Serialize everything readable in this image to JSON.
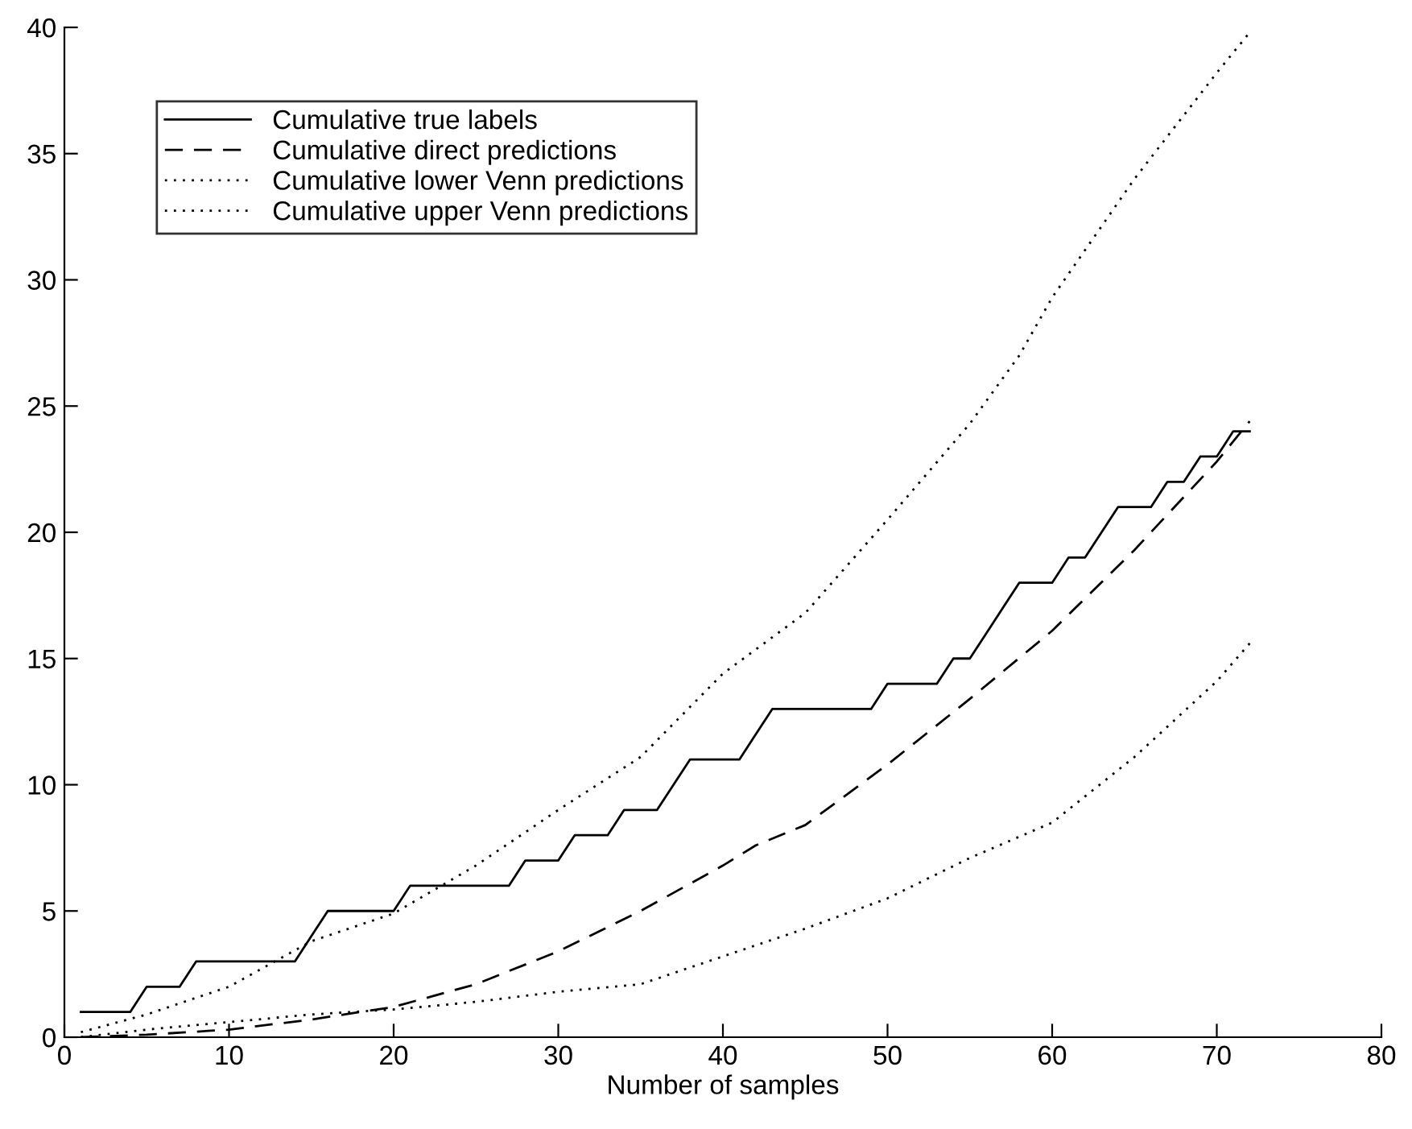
{
  "chart_data": {
    "type": "line",
    "xlabel": "Number of samples",
    "xlim": [
      0,
      80
    ],
    "ylim": [
      0,
      40
    ],
    "xticks": [
      0,
      10,
      20,
      30,
      40,
      50,
      60,
      70,
      80
    ],
    "yticks": [
      0,
      5,
      10,
      15,
      20,
      25,
      30,
      35,
      40
    ],
    "grid": false,
    "legend": "top left",
    "marker": "none",
    "series": [
      {
        "name": "Cumulative true labels",
        "color": "#000000",
        "line_style": "solid",
        "x": [
          1,
          2,
          3,
          4,
          5,
          6,
          7,
          8,
          9,
          10,
          11,
          12,
          13,
          14,
          15,
          16,
          17,
          18,
          19,
          20,
          21,
          22,
          23,
          24,
          25,
          26,
          27,
          28,
          29,
          30,
          31,
          32,
          33,
          34,
          35,
          36,
          37,
          38,
          39,
          40,
          41,
          42,
          43,
          44,
          45,
          46,
          47,
          48,
          49,
          50,
          51,
          52,
          53,
          54,
          55,
          56,
          57,
          58,
          59,
          60,
          61,
          62,
          63,
          64,
          65,
          66,
          67,
          68,
          69,
          70,
          71,
          72
        ],
        "values": [
          1,
          1,
          1,
          1,
          2,
          2,
          2,
          3,
          3,
          3,
          3,
          3,
          3,
          3,
          4,
          5,
          5,
          5,
          5,
          5,
          6,
          6,
          6,
          6,
          6,
          6,
          6,
          7,
          7,
          7,
          8,
          8,
          8,
          9,
          9,
          9,
          10,
          11,
          11,
          11,
          11,
          12,
          13,
          13,
          13,
          13,
          13,
          13,
          13,
          14,
          14,
          14,
          14,
          15,
          15,
          16,
          17,
          18,
          18,
          18,
          19,
          19,
          20,
          21,
          21,
          21,
          22,
          22,
          23,
          23,
          24,
          24
        ]
      },
      {
        "name": "Cumulative direct predictions",
        "color": "#000000",
        "line_style": "dashed",
        "x": [
          1,
          5,
          10,
          15,
          20,
          25,
          30,
          35,
          40,
          42,
          45,
          50,
          55,
          60,
          65,
          70,
          72
        ],
        "values": [
          0,
          0.1,
          0.3,
          0.7,
          1.2,
          2.1,
          3.4,
          5.0,
          6.8,
          7.6,
          8.4,
          10.8,
          13.4,
          16.1,
          19.3,
          22.8,
          24.4
        ]
      },
      {
        "name": "Cumulative lower Venn predictions",
        "color": "#000000",
        "line_style": "dotted",
        "x": [
          1,
          5,
          10,
          15,
          20,
          25,
          30,
          35,
          40,
          45,
          50,
          55,
          60,
          65,
          70,
          72
        ],
        "values": [
          0,
          0.3,
          0.6,
          0.9,
          1.1,
          1.4,
          1.8,
          2.1,
          3.2,
          4.3,
          5.5,
          7.1,
          8.5,
          11.1,
          14.1,
          15.6
        ]
      },
      {
        "name": "Cumulative upper Venn predictions",
        "color": "#000000",
        "line_style": "dotted",
        "x": [
          1,
          5,
          10,
          15,
          20,
          25,
          30,
          35,
          40,
          45,
          50,
          55,
          58,
          60,
          65,
          70,
          72
        ],
        "values": [
          0.2,
          0.9,
          2.0,
          3.8,
          4.9,
          6.8,
          9.0,
          11.1,
          14.4,
          16.8,
          20.5,
          24.3,
          27.0,
          29.3,
          34.0,
          38.2,
          39.8
        ]
      }
    ]
  }
}
